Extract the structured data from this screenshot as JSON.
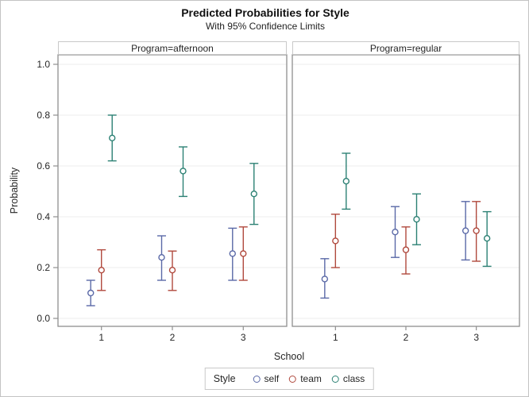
{
  "title": "Predicted Probabilities for Style",
  "subtitle": "With 95% Confidence Limits",
  "xlabel": "School",
  "ylabel": "Probability",
  "legend": {
    "title": "Style",
    "items": [
      {
        "label": "self",
        "color": "#5a69a7"
      },
      {
        "label": "team",
        "color": "#b0493d"
      },
      {
        "label": "class",
        "color": "#2c8174"
      }
    ]
  },
  "colors": {
    "panel_border": "#8f8f8f",
    "gridline": "#ececec",
    "tick": "#8f8f8f",
    "header_border": "#c9c9c9"
  },
  "chart_data": {
    "type": "scatter",
    "subtype": "grouped-points-with-95pct-confidence-error-bars",
    "x_categories": [
      "1",
      "2",
      "3"
    ],
    "ylim": [
      0.0,
      1.0
    ],
    "yticks": [
      0.0,
      0.2,
      0.4,
      0.6,
      0.8,
      1.0
    ],
    "grid": "horizontal",
    "legend_position": "bottom-center",
    "panels": [
      {
        "label": "Program=afternoon",
        "series": [
          {
            "name": "self",
            "points": [
              {
                "x": "1",
                "y": 0.1,
                "lo": 0.05,
                "hi": 0.15
              },
              {
                "x": "2",
                "y": 0.24,
                "lo": 0.15,
                "hi": 0.325
              },
              {
                "x": "3",
                "y": 0.255,
                "lo": 0.15,
                "hi": 0.355
              }
            ]
          },
          {
            "name": "team",
            "points": [
              {
                "x": "1",
                "y": 0.19,
                "lo": 0.11,
                "hi": 0.27
              },
              {
                "x": "2",
                "y": 0.19,
                "lo": 0.11,
                "hi": 0.265
              },
              {
                "x": "3",
                "y": 0.255,
                "lo": 0.15,
                "hi": 0.36
              }
            ]
          },
          {
            "name": "class",
            "points": [
              {
                "x": "1",
                "y": 0.71,
                "lo": 0.62,
                "hi": 0.8
              },
              {
                "x": "2",
                "y": 0.58,
                "lo": 0.48,
                "hi": 0.675
              },
              {
                "x": "3",
                "y": 0.49,
                "lo": 0.37,
                "hi": 0.61
              }
            ]
          }
        ]
      },
      {
        "label": "Program=regular",
        "series": [
          {
            "name": "self",
            "points": [
              {
                "x": "1",
                "y": 0.155,
                "lo": 0.08,
                "hi": 0.235
              },
              {
                "x": "2",
                "y": 0.34,
                "lo": 0.24,
                "hi": 0.44
              },
              {
                "x": "3",
                "y": 0.345,
                "lo": 0.23,
                "hi": 0.46
              }
            ]
          },
          {
            "name": "team",
            "points": [
              {
                "x": "1",
                "y": 0.305,
                "lo": 0.2,
                "hi": 0.41
              },
              {
                "x": "2",
                "y": 0.27,
                "lo": 0.175,
                "hi": 0.36
              },
              {
                "x": "3",
                "y": 0.345,
                "lo": 0.225,
                "hi": 0.46
              }
            ]
          },
          {
            "name": "class",
            "points": [
              {
                "x": "1",
                "y": 0.54,
                "lo": 0.43,
                "hi": 0.65
              },
              {
                "x": "2",
                "y": 0.39,
                "lo": 0.29,
                "hi": 0.49
              },
              {
                "x": "3",
                "y": 0.315,
                "lo": 0.205,
                "hi": 0.42
              }
            ]
          }
        ]
      }
    ]
  }
}
